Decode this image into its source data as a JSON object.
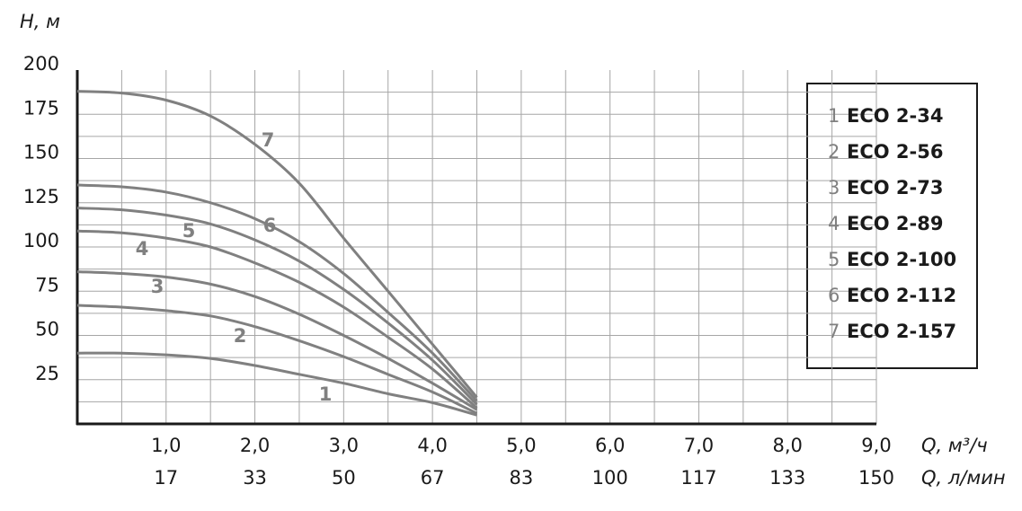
{
  "chart_data": {
    "type": "line",
    "ylabel": "H, м",
    "xlabel": "Q, м³/ч",
    "x2label": "Q, л/мин",
    "x": [
      0,
      0.5,
      1.0,
      1.5,
      2.0,
      2.5,
      3.0,
      3.5,
      4.0,
      4.5
    ],
    "xlim": [
      0,
      9.0
    ],
    "ylim": [
      0,
      200
    ],
    "xticks": [
      {
        "value": 1.0,
        "label": "1,0"
      },
      {
        "value": 2.0,
        "label": "2,0"
      },
      {
        "value": 3.0,
        "label": "3,0"
      },
      {
        "value": 4.0,
        "label": "4,0"
      },
      {
        "value": 5.0,
        "label": "5,0"
      },
      {
        "value": 6.0,
        "label": "6,0"
      },
      {
        "value": 7.0,
        "label": "7,0"
      },
      {
        "value": 8.0,
        "label": "8,0"
      },
      {
        "value": 9.0,
        "label": "9,0"
      }
    ],
    "x2ticks": [
      {
        "value": 1.0,
        "label": "17"
      },
      {
        "value": 2.0,
        "label": "33"
      },
      {
        "value": 3.0,
        "label": "50"
      },
      {
        "value": 4.0,
        "label": "67"
      },
      {
        "value": 5.0,
        "label": "83"
      },
      {
        "value": 6.0,
        "label": "100"
      },
      {
        "value": 7.0,
        "label": "117"
      },
      {
        "value": 8.0,
        "label": "133"
      },
      {
        "value": 9.0,
        "label": "150"
      }
    ],
    "yticks": [
      25,
      50,
      75,
      100,
      125,
      150,
      175,
      200
    ],
    "xgrid": [
      0.5,
      1.0,
      1.5,
      2.0,
      2.5,
      3.0,
      3.5,
      4.0,
      4.5,
      5.0,
      5.5,
      6.0,
      6.5,
      7.0,
      7.5,
      8.0,
      8.5,
      9.0
    ],
    "ygrid": [
      12.5,
      25,
      37.5,
      50,
      62.5,
      75,
      87.5,
      100,
      112.5,
      125,
      137.5,
      150,
      162.5,
      175,
      187.5
    ],
    "grid_color": "#a6a6a6",
    "legend": "right",
    "series": [
      {
        "id": "1",
        "name": "ECO 2-34",
        "color": "#808080",
        "values": [
          40,
          40,
          39,
          37,
          33,
          28,
          23,
          17,
          12,
          5
        ]
      },
      {
        "id": "2",
        "name": "ECO 2-56",
        "color": "#808080",
        "values": [
          67,
          66,
          64,
          61,
          55,
          47,
          38,
          28,
          18,
          6
        ]
      },
      {
        "id": "3",
        "name": "ECO 2-73",
        "color": "#808080",
        "values": [
          86,
          85,
          83,
          79,
          72,
          62,
          50,
          37,
          23,
          8
        ]
      },
      {
        "id": "4",
        "name": "ECO 2-89",
        "color": "#808080",
        "values": [
          109,
          108,
          105,
          100,
          91,
          80,
          66,
          49,
          31,
          9
        ]
      },
      {
        "id": "5",
        "name": "ECO 2-100",
        "color": "#808080",
        "values": [
          122,
          121,
          118,
          113,
          104,
          92,
          76,
          57,
          36,
          11
        ]
      },
      {
        "id": "6",
        "name": "ECO 2-112",
        "color": "#808080",
        "values": [
          135,
          134,
          131,
          125,
          116,
          103,
          85,
          63,
          40,
          13
        ]
      },
      {
        "id": "7",
        "name": "ECO 2-157",
        "color": "#808080",
        "values": [
          188,
          187,
          183,
          174,
          158,
          136,
          105,
          75,
          45,
          15
        ]
      }
    ]
  }
}
